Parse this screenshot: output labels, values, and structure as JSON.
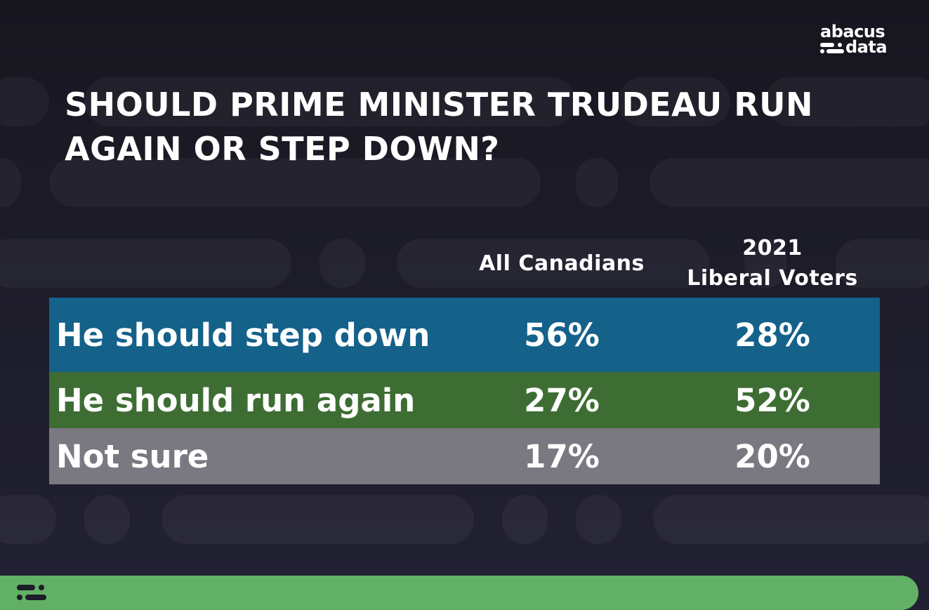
{
  "brand": {
    "logo_line1": "abacus",
    "logo_line2": "data",
    "footer_color": "#62b065"
  },
  "chart_data": {
    "type": "table",
    "title": "SHOULD PRIME MINISTER TRUDEAU RUN AGAIN OR STEP DOWN?",
    "columns": [
      "All Canadians",
      "2021 Liberal Voters"
    ],
    "rows": [
      {
        "label": "He should step down",
        "values": [
          "56%",
          "28%"
        ],
        "color": "#14618a"
      },
      {
        "label": "He should run again",
        "values": [
          "27%",
          "52%"
        ],
        "color": "#3d6d33"
      },
      {
        "label": "Not sure",
        "values": [
          "17%",
          "20%"
        ],
        "color": "#7a7982"
      }
    ]
  },
  "column_headers": {
    "all_canadians": "All Canadians",
    "liberal_line1": "2021",
    "liberal_line2": "Liberal Voters"
  }
}
